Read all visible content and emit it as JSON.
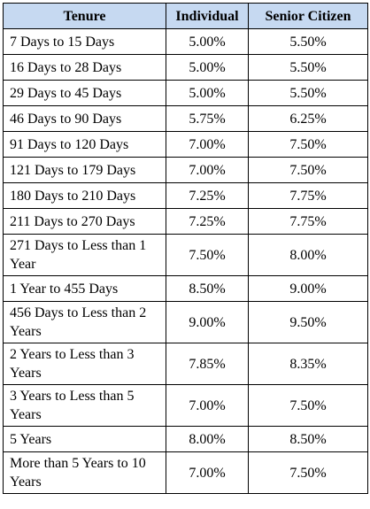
{
  "table": {
    "headers": [
      "Tenure",
      "Individual",
      "Senior Citizen"
    ],
    "rows": [
      {
        "tenure": "7 Days to 15 Days",
        "individual": "5.00%",
        "senior": "5.50%"
      },
      {
        "tenure": "16 Days to 28 Days",
        "individual": "5.00%",
        "senior": "5.50%"
      },
      {
        "tenure": "29 Days to 45 Days",
        "individual": "5.00%",
        "senior": "5.50%"
      },
      {
        "tenure": "46 Days to 90 Days",
        "individual": "5.75%",
        "senior": "6.25%"
      },
      {
        "tenure": "91 Days to 120 Days",
        "individual": "7.00%",
        "senior": "7.50%"
      },
      {
        "tenure": "121 Days to 179 Days",
        "individual": "7.00%",
        "senior": "7.50%"
      },
      {
        "tenure": "180 Days to 210 Days",
        "individual": "7.25%",
        "senior": "7.75%"
      },
      {
        "tenure": "211 Days to 270 Days",
        "individual": "7.25%",
        "senior": "7.75%"
      },
      {
        "tenure": "271 Days to Less than 1 Year",
        "individual": "7.50%",
        "senior": "8.00%"
      },
      {
        "tenure": "1 Year to 455 Days",
        "individual": "8.50%",
        "senior": "9.00%"
      },
      {
        "tenure": "456 Days to Less than 2 Years",
        "individual": "9.00%",
        "senior": "9.50%"
      },
      {
        "tenure": "2 Years to Less than 3 Years",
        "individual": "7.85%",
        "senior": "8.35%"
      },
      {
        "tenure": "3 Years to Less than 5 Years",
        "individual": "7.00%",
        "senior": "7.50%"
      },
      {
        "tenure": "5 Years",
        "individual": "8.00%",
        "senior": "8.50%"
      },
      {
        "tenure": "More than 5 Years to 10 Years",
        "individual": "7.00%",
        "senior": "7.50%"
      }
    ]
  },
  "colors": {
    "header_background": "#c6d9f1",
    "border": "#000000"
  }
}
